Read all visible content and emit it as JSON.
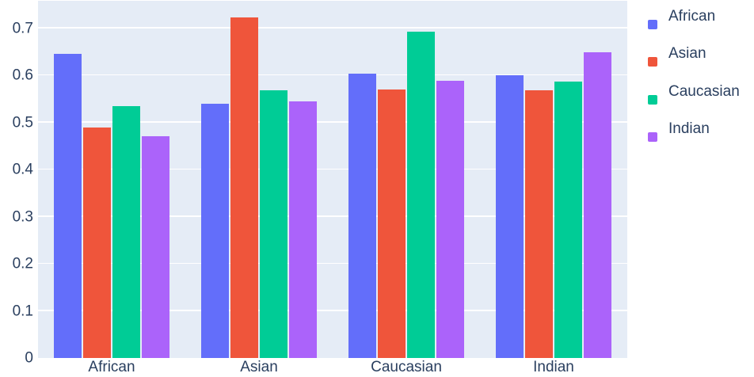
{
  "chart_data": {
    "type": "bar",
    "barmode": "group",
    "title": "",
    "xlabel": "",
    "ylabel": "",
    "categories": [
      "African",
      "Asian",
      "Caucasian",
      "Indian"
    ],
    "series": [
      {
        "name": "African",
        "color": "#636efa",
        "values": [
          0.646,
          0.539,
          0.604,
          0.6
        ]
      },
      {
        "name": "Asian",
        "color": "#ef553b",
        "values": [
          0.489,
          0.722,
          0.57,
          0.568
        ]
      },
      {
        "name": "Caucasian",
        "color": "#00cc96",
        "values": [
          0.535,
          0.568,
          0.693,
          0.587
        ]
      },
      {
        "name": "Indian",
        "color": "#ab63fa",
        "values": [
          0.47,
          0.545,
          0.589,
          0.648
        ]
      }
    ],
    "y_ticks": [
      {
        "value": 0,
        "label": "0"
      },
      {
        "value": 0.1,
        "label": "0.1"
      },
      {
        "value": 0.2,
        "label": "0.2"
      },
      {
        "value": 0.3,
        "label": "0.3"
      },
      {
        "value": 0.4,
        "label": "0.4"
      },
      {
        "value": 0.5,
        "label": "0.5"
      },
      {
        "value": 0.6,
        "label": "0.6"
      },
      {
        "value": 0.7,
        "label": "0.7"
      },
      {
        "value": 0.758,
        "label": ""
      }
    ],
    "ylim": [
      0,
      0.758
    ],
    "grid": true,
    "legend_position": "top-right"
  },
  "style": {
    "paper_bg": "#ffffff",
    "plot_bg": "#e5ecf6",
    "grid_color": "#ffffff",
    "text_color": "#2a3f5f"
  }
}
